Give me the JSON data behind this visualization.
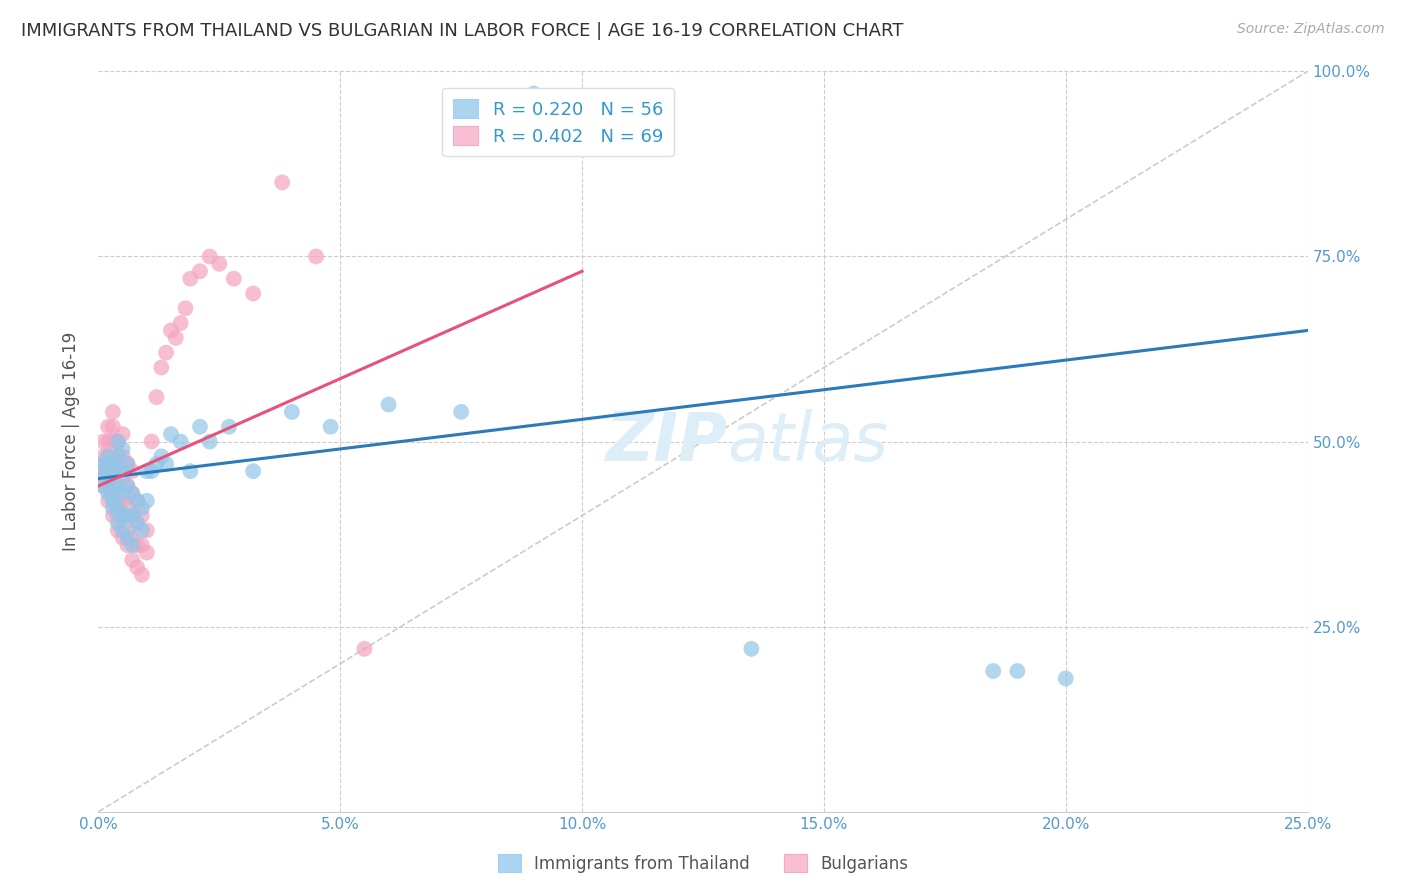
{
  "title": "IMMIGRANTS FROM THAILAND VS BULGARIAN IN LABOR FORCE | AGE 16-19 CORRELATION CHART",
  "source": "Source: ZipAtlas.com",
  "ylabel": "In Labor Force | Age 16-19",
  "xlim": [
    0.0,
    0.25
  ],
  "ylim": [
    0.0,
    1.0
  ],
  "xticks": [
    0.0,
    0.05,
    0.1,
    0.15,
    0.2,
    0.25
  ],
  "xticklabels": [
    "0.0%",
    "5.0%",
    "10.0%",
    "15.0%",
    "20.0%",
    "25.0%"
  ],
  "right_yticks": [
    1.0,
    0.75,
    0.5,
    0.25
  ],
  "right_yticklabels": [
    "100.0%",
    "75.0%",
    "50.0%",
    "25.0%"
  ],
  "thailand_R": 0.22,
  "thailand_N": 56,
  "bulgarian_R": 0.402,
  "bulgarian_N": 69,
  "thailand_color": "#92c5e8",
  "bulgarian_color": "#f4a3c0",
  "thailand_line_color": "#2b7bba",
  "bulgarian_line_color": "#e8527a",
  "ref_line_color": "#cccccc",
  "legend_thailand_color": "#aad4f0",
  "legend_bulgarian_color": "#f9c0d4",
  "background_color": "#ffffff",
  "title_color": "#333333",
  "title_fontsize": 13,
  "axis_label_color": "#555555",
  "tick_color": "#5599cc",
  "watermark_color": "#deeef8",
  "thailand_x": [
    0.001,
    0.001,
    0.001,
    0.002,
    0.002,
    0.002,
    0.002,
    0.003,
    0.003,
    0.003,
    0.003,
    0.003,
    0.004,
    0.004,
    0.004,
    0.004,
    0.004,
    0.004,
    0.005,
    0.005,
    0.005,
    0.005,
    0.005,
    0.006,
    0.006,
    0.006,
    0.006,
    0.007,
    0.007,
    0.007,
    0.008,
    0.008,
    0.009,
    0.009,
    0.01,
    0.01,
    0.011,
    0.012,
    0.013,
    0.014,
    0.015,
    0.017,
    0.019,
    0.021,
    0.023,
    0.027,
    0.032,
    0.04,
    0.048,
    0.06,
    0.075,
    0.09,
    0.135,
    0.185,
    0.19,
    0.2
  ],
  "thailand_y": [
    0.44,
    0.46,
    0.47,
    0.43,
    0.45,
    0.47,
    0.48,
    0.41,
    0.43,
    0.45,
    0.47,
    0.42,
    0.39,
    0.41,
    0.44,
    0.46,
    0.48,
    0.5,
    0.38,
    0.4,
    0.43,
    0.46,
    0.49,
    0.37,
    0.4,
    0.44,
    0.47,
    0.36,
    0.4,
    0.43,
    0.39,
    0.42,
    0.38,
    0.41,
    0.42,
    0.46,
    0.46,
    0.47,
    0.48,
    0.47,
    0.51,
    0.5,
    0.46,
    0.52,
    0.5,
    0.52,
    0.46,
    0.54,
    0.52,
    0.55,
    0.54,
    0.97,
    0.22,
    0.19,
    0.19,
    0.18
  ],
  "bulgarian_x": [
    0.001,
    0.001,
    0.001,
    0.001,
    0.001,
    0.001,
    0.002,
    0.002,
    0.002,
    0.002,
    0.002,
    0.002,
    0.003,
    0.003,
    0.003,
    0.003,
    0.003,
    0.003,
    0.003,
    0.003,
    0.004,
    0.004,
    0.004,
    0.004,
    0.004,
    0.004,
    0.004,
    0.005,
    0.005,
    0.005,
    0.005,
    0.005,
    0.005,
    0.006,
    0.006,
    0.006,
    0.006,
    0.006,
    0.007,
    0.007,
    0.007,
    0.007,
    0.007,
    0.008,
    0.008,
    0.008,
    0.008,
    0.009,
    0.009,
    0.009,
    0.01,
    0.01,
    0.011,
    0.012,
    0.013,
    0.014,
    0.015,
    0.016,
    0.017,
    0.018,
    0.019,
    0.021,
    0.023,
    0.025,
    0.028,
    0.032,
    0.038,
    0.045,
    0.055
  ],
  "bulgarian_y": [
    0.45,
    0.46,
    0.47,
    0.48,
    0.5,
    0.44,
    0.42,
    0.44,
    0.46,
    0.48,
    0.5,
    0.52,
    0.4,
    0.42,
    0.44,
    0.46,
    0.48,
    0.5,
    0.52,
    0.54,
    0.38,
    0.4,
    0.42,
    0.44,
    0.46,
    0.48,
    0.5,
    0.37,
    0.4,
    0.42,
    0.45,
    0.48,
    0.51,
    0.36,
    0.38,
    0.41,
    0.44,
    0.47,
    0.34,
    0.37,
    0.4,
    0.43,
    0.46,
    0.33,
    0.36,
    0.39,
    0.42,
    0.32,
    0.36,
    0.4,
    0.35,
    0.38,
    0.5,
    0.56,
    0.6,
    0.62,
    0.65,
    0.64,
    0.66,
    0.68,
    0.72,
    0.73,
    0.75,
    0.74,
    0.72,
    0.7,
    0.85,
    0.75,
    0.22
  ],
  "thailand_line": [
    0.0,
    0.45,
    0.25,
    0.65
  ],
  "bulgarian_line": [
    0.0,
    0.44,
    0.1,
    0.73
  ]
}
